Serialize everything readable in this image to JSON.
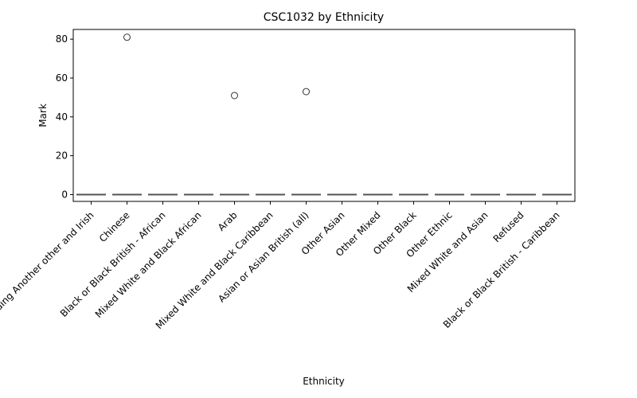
{
  "chart_data": {
    "type": "box",
    "title": "CSC1032 by Ethnicity",
    "xlabel": "Ethnicity",
    "ylabel": "Mark",
    "ylim": [
      -3.5,
      85
    ],
    "yticks": [
      0,
      20,
      40,
      60,
      80
    ],
    "categories": [
      "White including Another other and Irish",
      "Chinese",
      "Black or Black British - African",
      "Mixed White and Black African",
      "Arab",
      "Mixed White and Black Caribbean",
      "Asian or Asian British (all)",
      "Other Asian",
      "Other Mixed",
      "Other Black",
      "Other Ethnic",
      "Mixed White and Asian",
      "Refused",
      "Black or Black British - Caribbean"
    ],
    "boxes": [
      {
        "median": 0,
        "q1": 0,
        "q3": 0,
        "whisker_low": 0,
        "whisker_high": 0,
        "outliers": []
      },
      {
        "median": 0,
        "q1": 0,
        "q3": 0,
        "whisker_low": 0,
        "whisker_high": 0,
        "outliers": [
          81
        ]
      },
      {
        "median": 0,
        "q1": 0,
        "q3": 0,
        "whisker_low": 0,
        "whisker_high": 0,
        "outliers": []
      },
      {
        "median": 0,
        "q1": 0,
        "q3": 0,
        "whisker_low": 0,
        "whisker_high": 0,
        "outliers": []
      },
      {
        "median": 0,
        "q1": 0,
        "q3": 0,
        "whisker_low": 0,
        "whisker_high": 0,
        "outliers": [
          51
        ]
      },
      {
        "median": 0,
        "q1": 0,
        "q3": 0,
        "whisker_low": 0,
        "whisker_high": 0,
        "outliers": []
      },
      {
        "median": 0,
        "q1": 0,
        "q3": 0,
        "whisker_low": 0,
        "whisker_high": 0,
        "outliers": [
          53
        ]
      },
      {
        "median": 0,
        "q1": 0,
        "q3": 0,
        "whisker_low": 0,
        "whisker_high": 0,
        "outliers": []
      },
      {
        "median": 0,
        "q1": 0,
        "q3": 0,
        "whisker_low": 0,
        "whisker_high": 0,
        "outliers": []
      },
      {
        "median": 0,
        "q1": 0,
        "q3": 0,
        "whisker_low": 0,
        "whisker_high": 0,
        "outliers": []
      },
      {
        "median": 0,
        "q1": 0,
        "q3": 0,
        "whisker_low": 0,
        "whisker_high": 0,
        "outliers": []
      },
      {
        "median": 0,
        "q1": 0,
        "q3": 0,
        "whisker_low": 0,
        "whisker_high": 0,
        "outliers": []
      },
      {
        "median": 0,
        "q1": 0,
        "q3": 0,
        "whisker_low": 0,
        "whisker_high": 0,
        "outliers": []
      },
      {
        "median": 0,
        "q1": 0,
        "q3": 0,
        "whisker_low": 0,
        "whisker_high": 0,
        "outliers": []
      }
    ],
    "grid": false,
    "legend": "none",
    "colors": {
      "box": "#3a76ae",
      "median": "#555555",
      "axis": "#000000"
    }
  }
}
